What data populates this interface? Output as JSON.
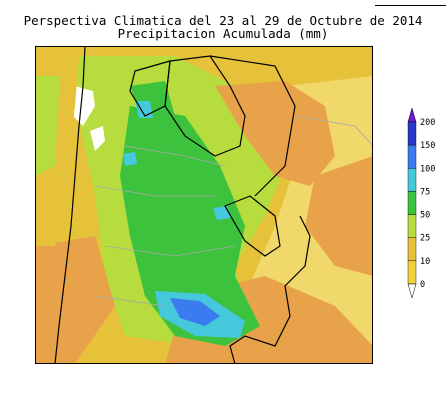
{
  "title": "Perspectiva Climatica del 23 al 29 de Octubre de 2014",
  "subtitle": "Precipitacion Acumulada (mm)",
  "legend": {
    "unit": "mm",
    "levels": [
      {
        "value": "0",
        "color": "#ffffff"
      },
      {
        "value": "10",
        "color": "#f2d23c"
      },
      {
        "value": "25",
        "color": "#e6c23a"
      },
      {
        "value": "50",
        "color": "#b6dc3e"
      },
      {
        "value": "75",
        "color": "#3cc23c"
      },
      {
        "value": "100",
        "color": "#46c8dc"
      },
      {
        "value": "150",
        "color": "#3a7cf0"
      },
      {
        "value": "200",
        "color": "#2838c8"
      }
    ],
    "top_color": "#6a1ad2"
  },
  "colors": {
    "very_low": "#ffffff",
    "low": "#e8a24a",
    "mid": "#e6c23a",
    "moderate": "#b6dc3e",
    "high": "#3cc23c",
    "very_high": "#46c8dc",
    "max": "#3a7cf0"
  }
}
